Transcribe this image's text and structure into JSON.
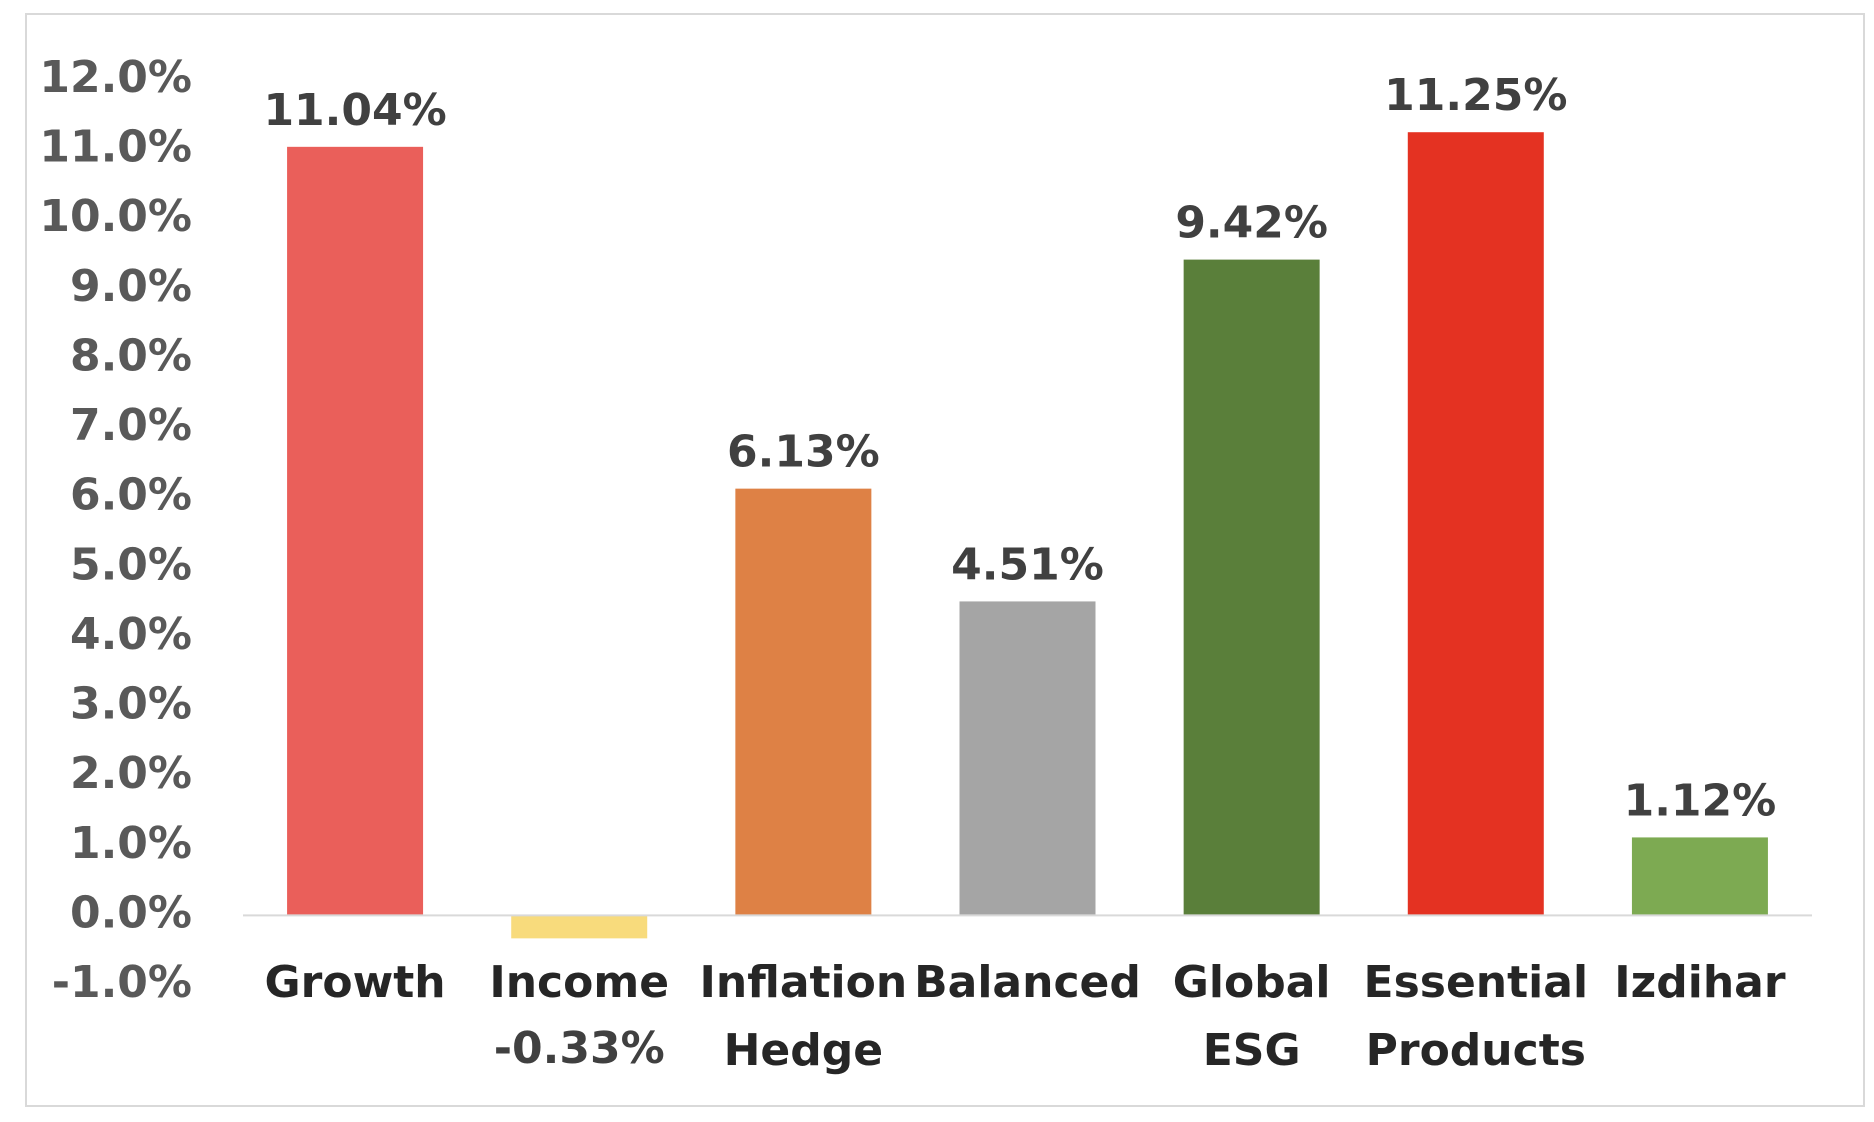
{
  "chart_data": {
    "type": "bar",
    "title": "",
    "xlabel": "",
    "ylabel": "",
    "categories": [
      [
        "Growth"
      ],
      [
        "Income"
      ],
      [
        "Inflation",
        "Hedge"
      ],
      [
        "Balanced"
      ],
      [
        "Global",
        "ESG"
      ],
      [
        "Essential",
        "Products"
      ],
      [
        "Izdihar"
      ]
    ],
    "values": [
      11.04,
      -0.33,
      6.13,
      4.51,
      9.42,
      11.25,
      1.12
    ],
    "data_labels": [
      "11.04%",
      "-0.33%",
      "6.13%",
      "4.51%",
      "9.42%",
      "11.25%",
      "1.12%"
    ],
    "bar_colors": [
      "#EA5F5A",
      "#F8DB7C",
      "#DE8145",
      "#A5A5A5",
      "#5A7F3A",
      "#E43222",
      "#7DAA52"
    ],
    "ylim": [
      -1.0,
      12.0
    ],
    "yticks": [
      "12.0%",
      "11.0%",
      "10.0%",
      "9.0%",
      "8.0%",
      "7.0%",
      "6.0%",
      "5.0%",
      "4.0%",
      "3.0%",
      "2.0%",
      "1.0%",
      "0.0%",
      "-1.0%"
    ],
    "ytick_values": [
      12,
      11,
      10,
      9,
      8,
      7,
      6,
      5,
      4,
      3,
      2,
      1,
      0,
      -1
    ],
    "grid": false,
    "legend": "none"
  },
  "colors": {
    "border": "#D9D9D9",
    "axis": "#D9D9D9"
  }
}
